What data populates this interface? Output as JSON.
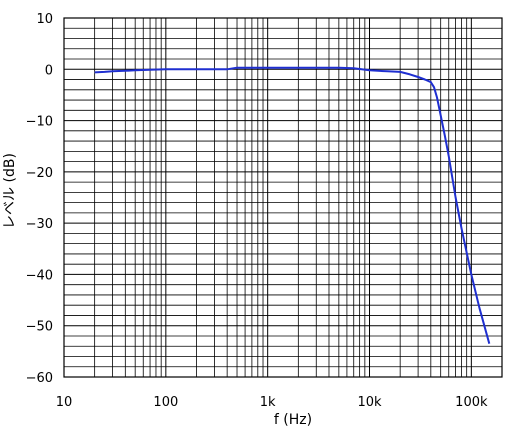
{
  "chart_data": {
    "type": "line",
    "title": "",
    "xlabel": "f (Hz)",
    "ylabel": "レベル (dB)",
    "x_scale": "log",
    "xlim": [
      10,
      200000
    ],
    "ylim": [
      -60,
      10
    ],
    "grid": true,
    "x_ticks": [
      {
        "value": 10,
        "label": "10"
      },
      {
        "value": 100,
        "label": "100"
      },
      {
        "value": 1000,
        "label": "1k"
      },
      {
        "value": 10000,
        "label": "10k"
      },
      {
        "value": 100000,
        "label": "100k"
      }
    ],
    "y_ticks": [
      {
        "value": 10,
        "label": "10"
      },
      {
        "value": 0,
        "label": "0"
      },
      {
        "value": -10,
        "label": "−10"
      },
      {
        "value": -20,
        "label": "−20"
      },
      {
        "value": -30,
        "label": "−30"
      },
      {
        "value": -40,
        "label": "−40"
      },
      {
        "value": -50,
        "label": "−50"
      },
      {
        "value": -60,
        "label": "−60"
      }
    ],
    "series": [
      {
        "color": "#1f2fd0",
        "x": [
          20,
          25,
          30,
          40,
          50,
          70,
          100,
          200,
          400,
          500,
          1000,
          2000,
          5000,
          7000,
          10000,
          15000,
          20000,
          25000,
          30000,
          35000,
          40000,
          43000,
          46000,
          50000,
          55000,
          60000,
          70000,
          80000,
          100000,
          120000,
          150000
        ],
        "y": [
          -0.6,
          -0.5,
          -0.4,
          -0.3,
          -0.2,
          -0.1,
          0,
          0,
          0,
          0.3,
          0.3,
          0.3,
          0.3,
          0.2,
          -0.2,
          -0.4,
          -0.5,
          -1.0,
          -1.5,
          -2.0,
          -2.5,
          -3.5,
          -5.5,
          -9.0,
          -13.0,
          -17.0,
          -25.0,
          -31.0,
          -40.0,
          -46.5,
          -53.5
        ]
      }
    ]
  }
}
